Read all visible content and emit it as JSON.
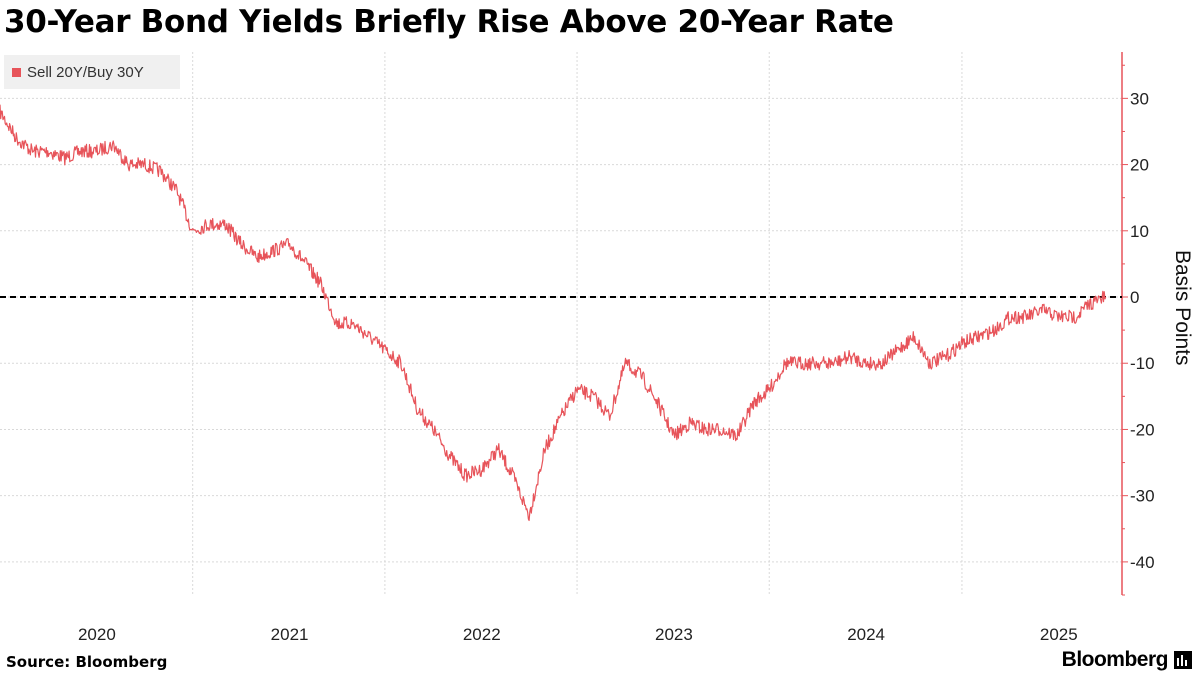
{
  "chart_data": {
    "type": "line",
    "title": "30-Year Bond Yields Briefly Rise Above 20-Year Rate",
    "ylabel": "Basis Points",
    "ylim": [
      -45,
      37
    ],
    "y_ticks": [
      30,
      20,
      10,
      0,
      -10,
      -20,
      -30,
      -40
    ],
    "x_ticks": [
      "2020",
      "2021",
      "2022",
      "2023",
      "2024",
      "2025"
    ],
    "xlim": [
      "2019-07-01",
      "2025-05-01"
    ],
    "reference_line": 0,
    "legend_position": "top-left",
    "grid": true,
    "series": [
      {
        "name": "Sell 20Y/Buy 30Y",
        "color": "#e7545a",
        "points": [
          [
            "2019-07-01",
            28
          ],
          [
            "2019-08-01",
            24
          ],
          [
            "2019-09-01",
            22
          ],
          [
            "2019-10-01",
            22
          ],
          [
            "2019-11-01",
            21
          ],
          [
            "2019-12-01",
            22
          ],
          [
            "2020-01-01",
            22
          ],
          [
            "2020-02-01",
            23
          ],
          [
            "2020-03-01",
            20
          ],
          [
            "2020-04-01",
            20
          ],
          [
            "2020-05-01",
            19
          ],
          [
            "2020-06-01",
            16
          ],
          [
            "2020-07-01",
            10
          ],
          [
            "2020-08-01",
            11
          ],
          [
            "2020-09-01",
            11
          ],
          [
            "2020-10-01",
            8
          ],
          [
            "2020-11-01",
            6
          ],
          [
            "2020-12-01",
            7
          ],
          [
            "2021-01-01",
            8
          ],
          [
            "2021-02-01",
            5
          ],
          [
            "2021-03-01",
            2
          ],
          [
            "2021-04-01",
            -4
          ],
          [
            "2021-05-01",
            -4
          ],
          [
            "2021-06-01",
            -6
          ],
          [
            "2021-07-01",
            -8
          ],
          [
            "2021-08-01",
            -10
          ],
          [
            "2021-09-01",
            -17
          ],
          [
            "2021-10-01",
            -20
          ],
          [
            "2021-11-01",
            -24
          ],
          [
            "2021-12-01",
            -27
          ],
          [
            "2022-01-01",
            -26
          ],
          [
            "2022-02-01",
            -23
          ],
          [
            "2022-03-01",
            -27
          ],
          [
            "2022-04-01",
            -33
          ],
          [
            "2022-05-01",
            -23
          ],
          [
            "2022-06-01",
            -18
          ],
          [
            "2022-07-01",
            -14
          ],
          [
            "2022-08-01",
            -15
          ],
          [
            "2022-09-01",
            -18
          ],
          [
            "2022-10-01",
            -10
          ],
          [
            "2022-11-01",
            -12
          ],
          [
            "2022-12-01",
            -16
          ],
          [
            "2023-01-01",
            -21
          ],
          [
            "2023-02-01",
            -19
          ],
          [
            "2023-03-01",
            -20
          ],
          [
            "2023-04-01",
            -20
          ],
          [
            "2023-05-01",
            -21
          ],
          [
            "2023-06-01",
            -16
          ],
          [
            "2023-07-01",
            -14
          ],
          [
            "2023-08-01",
            -10
          ],
          [
            "2023-09-01",
            -10
          ],
          [
            "2023-10-01",
            -10
          ],
          [
            "2023-11-01",
            -10
          ],
          [
            "2023-12-01",
            -9
          ],
          [
            "2024-01-01",
            -10
          ],
          [
            "2024-02-01",
            -10
          ],
          [
            "2024-03-01",
            -8
          ],
          [
            "2024-04-01",
            -6
          ],
          [
            "2024-05-01",
            -10
          ],
          [
            "2024-06-01",
            -9
          ],
          [
            "2024-07-01",
            -7
          ],
          [
            "2024-08-01",
            -6
          ],
          [
            "2024-09-01",
            -5
          ],
          [
            "2024-10-01",
            -3
          ],
          [
            "2024-11-01",
            -3
          ],
          [
            "2024-12-01",
            -2
          ],
          [
            "2025-01-01",
            -3
          ],
          [
            "2025-02-01",
            -3
          ],
          [
            "2025-03-01",
            -1
          ],
          [
            "2025-03-31",
            0
          ]
        ]
      }
    ]
  },
  "footer": {
    "source": "Source: Bloomberg",
    "brand": "Bloomberg"
  }
}
